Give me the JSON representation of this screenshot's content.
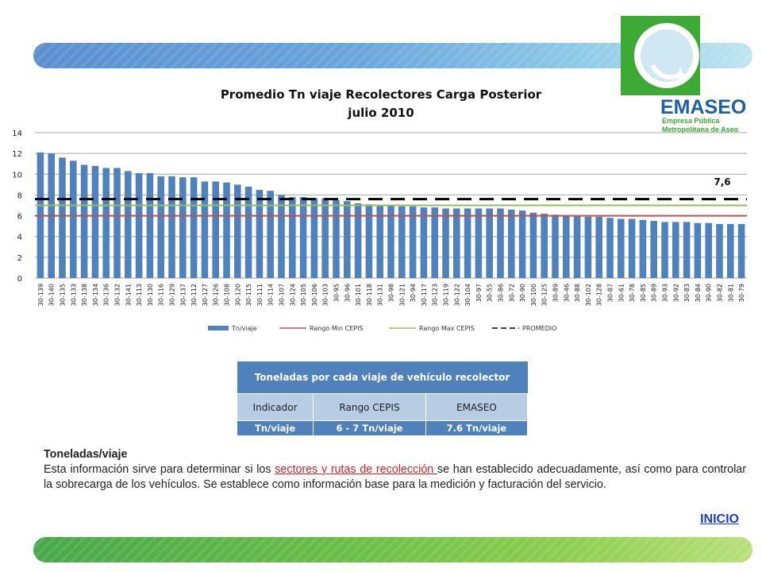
{
  "chart_data": {
    "type": "bar",
    "title": "Promedio Tn viaje Recolectores Carga Posterior",
    "subtitle": "julio 2010",
    "categories": [
      "30-139",
      "30-140",
      "30-135",
      "30-133",
      "30-138",
      "30-134",
      "30-136",
      "30-132",
      "30-141",
      "30-113",
      "30-130",
      "30-116",
      "30-129",
      "30-137",
      "30-112",
      "30-127",
      "30-126",
      "30-108",
      "30-120",
      "30-115",
      "30-111",
      "30-114",
      "30-107",
      "30-124",
      "30-105",
      "30-106",
      "30-103",
      "30-95",
      "30-96",
      "30-101",
      "30-118",
      "30-131",
      "30-98",
      "30-121",
      "30-94",
      "30-117",
      "30-123",
      "30-119",
      "30-122",
      "30-104",
      "30-97",
      "30-55",
      "30-86",
      "30-72",
      "30-90",
      "30-100",
      "30-125",
      "30-89",
      "30-46",
      "30-88",
      "30-102",
      "30-128",
      "30-87",
      "30-61",
      "30-78",
      "30-85",
      "30-89",
      "30-93",
      "30-92",
      "30-83",
      "30-84",
      "30-90",
      "30-82",
      "30-81",
      "30-79"
    ],
    "series": [
      {
        "name": "Tn/viaje",
        "type": "bar",
        "values": [
          12.1,
          12.0,
          11.6,
          11.3,
          10.9,
          10.8,
          10.6,
          10.6,
          10.3,
          10.1,
          10.1,
          9.8,
          9.8,
          9.7,
          9.7,
          9.3,
          9.3,
          9.2,
          9.0,
          8.8,
          8.5,
          8.4,
          8.0,
          7.8,
          7.8,
          7.7,
          7.7,
          7.5,
          7.4,
          7.2,
          7.1,
          7.0,
          7.0,
          6.9,
          6.9,
          6.8,
          6.8,
          6.7,
          6.7,
          6.7,
          6.7,
          6.7,
          6.7,
          6.6,
          6.5,
          6.3,
          6.2,
          6.1,
          6.0,
          6.0,
          5.9,
          5.9,
          5.8,
          5.7,
          5.7,
          5.6,
          5.5,
          5.4,
          5.4,
          5.4,
          5.3,
          5.3,
          5.2,
          5.2,
          5.2
        ]
      },
      {
        "name": "Rango Min CEPIS",
        "type": "line",
        "value": 6
      },
      {
        "name": "Rango Max CEPIS",
        "type": "line",
        "value": 7
      },
      {
        "name": "PROMEDIO",
        "type": "dashed-line",
        "value": 7.6
      }
    ],
    "annotation": "7,6",
    "ylim": [
      0,
      14
    ],
    "yticks": [
      0,
      2,
      4,
      6,
      8,
      10,
      12,
      14
    ],
    "grid": true,
    "legend_position": "bottom",
    "colors": {
      "bar": "#4f81bd",
      "min": "#c0504d",
      "max": "#9bbb59",
      "avg": "#000000",
      "grid": "#a6a6a6"
    }
  },
  "logo": {
    "name": "EMASEO",
    "line1": "Empresa Pública",
    "line2": "Metropolitana de Aseo",
    "colors": {
      "green": "#3daa35",
      "blue": "#1f5fa8",
      "light_blue": "#d8ecf6"
    }
  },
  "table": {
    "header": "Toneladas por cada viaje  de vehículo recolector",
    "columns": [
      "Indicador",
      "Rango CEPIS",
      "EMASEO"
    ],
    "row": [
      "Tn/viaje",
      "6 - 7 Tn/viaje",
      "7.6 Tn/viaje"
    ]
  },
  "description": {
    "title": "Toneladas/viaje",
    "before_link": "Esta información sirve para determinar si los ",
    "link_text": "sectores y rutas de recolección ",
    "after_link": "se han establecido adecuadamente, así como para controlar la sobrecarga de los vehículos. Se establece como información base para la medición y facturación del servicio."
  },
  "nav": {
    "inicio": "INICIO"
  }
}
